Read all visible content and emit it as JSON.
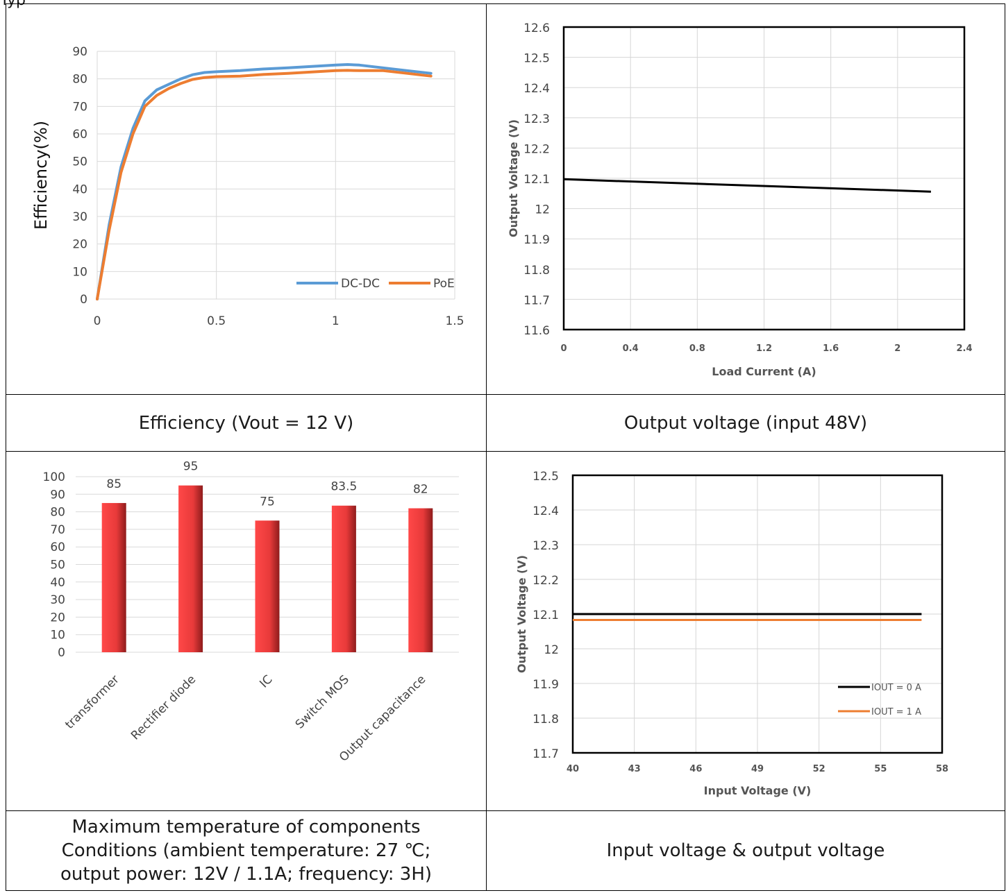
{
  "page_heading": "Typ",
  "charts": {
    "efficiency": {
      "caption": "Efficiency (Vout = 12 V)",
      "chart_data": {
        "type": "line",
        "title": "",
        "xlabel": "",
        "ylabel": "Efficiency(%)",
        "xlim": [
          0,
          1.5
        ],
        "ylim": [
          0,
          90
        ],
        "xticks": [
          "0",
          "0.5",
          "1",
          "1.5"
        ],
        "yticks": [
          "0",
          "10",
          "20",
          "30",
          "40",
          "50",
          "60",
          "70",
          "80",
          "90"
        ],
        "grid": true,
        "legend": "bottom-right",
        "series": [
          {
            "name": "DC-DC",
            "color": "#5b9bd5",
            "x": [
              0,
              0.05,
              0.1,
              0.15,
              0.2,
              0.25,
              0.3,
              0.35,
              0.4,
              0.45,
              0.5,
              0.6,
              0.7,
              0.8,
              0.9,
              1.0,
              1.05,
              1.1,
              1.2,
              1.3,
              1.4
            ],
            "y": [
              0,
              27,
              48,
              62,
              72,
              76,
              78,
              80,
              81.5,
              82.3,
              82.6,
              83,
              83.6,
              84,
              84.5,
              85,
              85.2,
              85,
              84,
              83,
              82
            ]
          },
          {
            "name": "PoE",
            "color": "#ed7d31",
            "x": [
              0,
              0.05,
              0.1,
              0.15,
              0.2,
              0.25,
              0.3,
              0.35,
              0.4,
              0.45,
              0.5,
              0.6,
              0.7,
              0.8,
              0.9,
              1.0,
              1.05,
              1.1,
              1.2,
              1.3,
              1.4
            ],
            "y": [
              0,
              25,
              46,
              60,
              70,
              74,
              76.5,
              78.3,
              79.8,
              80.5,
              80.8,
              81,
              81.6,
              82,
              82.5,
              83,
              83.1,
              83,
              83,
              82,
              81
            ]
          }
        ]
      }
    },
    "output_voltage": {
      "caption": "Output voltage (input 48V)",
      "chart_data": {
        "type": "line",
        "title": "",
        "xlabel": "Load Current (A)",
        "ylabel": "Output Voltage (V)",
        "xlim": [
          0,
          2.4
        ],
        "ylim": [
          11.6,
          12.6
        ],
        "xticks": [
          "0",
          "0.4",
          "0.8",
          "1.2",
          "1.6",
          "2",
          "2.4"
        ],
        "yticks": [
          "11.6",
          "11.7",
          "11.8",
          "11.9",
          "12",
          "12.1",
          "12.2",
          "12.3",
          "12.4",
          "12.5",
          "12.6"
        ],
        "grid": true,
        "series": [
          {
            "color": "#000000",
            "x": [
              0,
              2.2
            ],
            "y": [
              12.097,
              12.056
            ]
          }
        ]
      }
    },
    "max_temperature": {
      "caption_lines": [
        "Maximum temperature of components",
        "Conditions (ambient temperature: 27 ℃;",
        "output power: 12V / 1.1A; frequency: 3H)"
      ],
      "chart_data": {
        "type": "bar",
        "title": "",
        "xlabel": "",
        "ylabel": "",
        "categories": [
          "transformer",
          "Rectifier diode",
          "IC",
          "Switch MOS",
          "Output capacitance"
        ],
        "values": [
          85,
          95,
          75,
          83.5,
          82
        ],
        "value_labels": [
          "85",
          "95",
          "75",
          "83.5",
          "82"
        ],
        "ylim": [
          0,
          100
        ],
        "yticks": [
          "0",
          "10",
          "20",
          "30",
          "40",
          "50",
          "60",
          "70",
          "80",
          "90",
          "100"
        ],
        "grid": true,
        "bar_color": "#e83a3a"
      }
    },
    "input_output_voltage": {
      "caption": "Input voltage & output voltage",
      "chart_data": {
        "type": "line",
        "title": "",
        "xlabel": "Input Voltage (V)",
        "ylabel": "Output Voltage (V)",
        "xlim": [
          40,
          58
        ],
        "ylim": [
          11.7,
          12.5
        ],
        "xticks": [
          "40",
          "43",
          "46",
          "49",
          "52",
          "55",
          "58"
        ],
        "yticks": [
          "11.7",
          "11.8",
          "11.9",
          "12",
          "12.1",
          "12.2",
          "12.3",
          "12.4",
          "12.5"
        ],
        "grid": true,
        "legend": "bottom-right",
        "series": [
          {
            "name": "IOUT = 0 A",
            "color": "#000000",
            "x": [
              40,
              57
            ],
            "y": [
              12.1,
              12.1
            ]
          },
          {
            "name": "IOUT = 1 A",
            "color": "#ed7d31",
            "x": [
              40,
              57
            ],
            "y": [
              12.083,
              12.083
            ]
          }
        ]
      }
    }
  }
}
